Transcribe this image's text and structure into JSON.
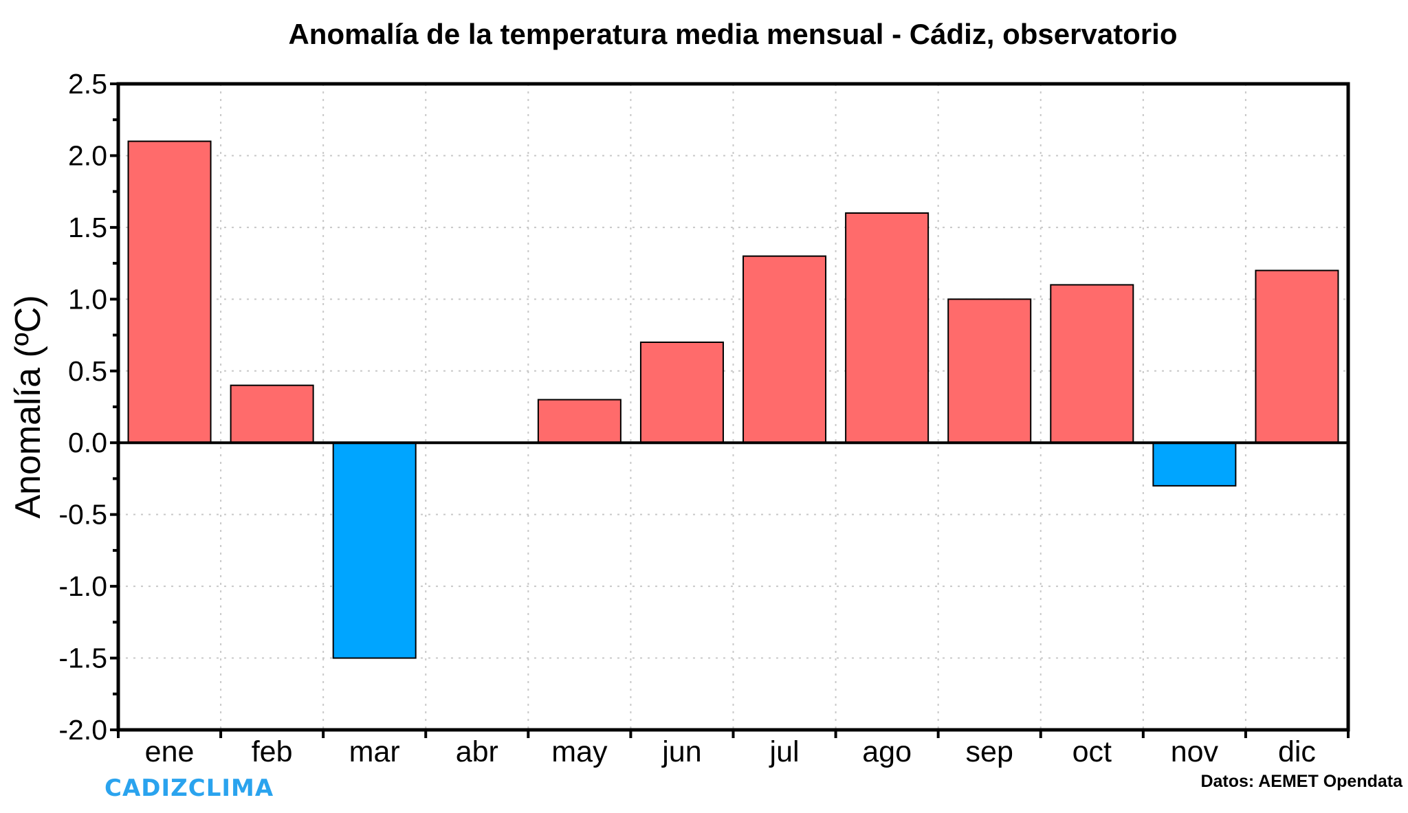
{
  "chart_data": {
    "type": "bar",
    "title": "Anomalía de la temperatura media mensual - Cádiz, observatorio",
    "xlabel": "",
    "ylabel": "Anomalía (ºC)",
    "categories": [
      "ene",
      "feb",
      "mar",
      "abr",
      "may",
      "jun",
      "jul",
      "ago",
      "sep",
      "oct",
      "nov",
      "dic"
    ],
    "values": [
      2.1,
      0.4,
      -1.5,
      0.0,
      0.3,
      0.7,
      1.3,
      1.6,
      1.0,
      1.1,
      -0.3,
      1.2
    ],
    "ylim": [
      -2.0,
      2.5
    ],
    "yticks": [
      -2.0,
      -1.5,
      -1.0,
      -0.5,
      0.0,
      0.5,
      1.0,
      1.5,
      2.0,
      2.5
    ],
    "ytick_labels": [
      "-2.0",
      "-1.5",
      "-1.0",
      "-0.5",
      "0.0",
      "0.5",
      "1.0",
      "1.5",
      "2.0",
      "2.5"
    ],
    "grid": true,
    "legend": "none",
    "colors": {
      "positive": "#FF6B6B",
      "negative": "#00A5FF",
      "bar_edge": "#000000",
      "grid": "#C8C8C8"
    }
  },
  "footer": {
    "brand": "CADIZCLIMA",
    "brand_color": "#2AA3EE",
    "source": "Datos: AEMET Opendata"
  }
}
